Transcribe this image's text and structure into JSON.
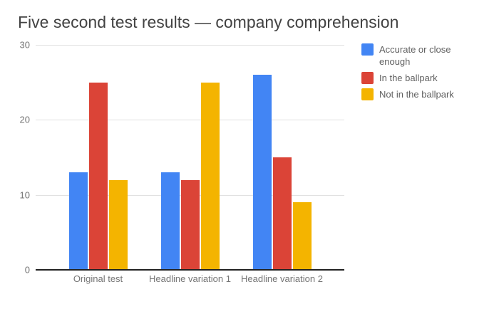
{
  "chart_data": {
    "type": "bar",
    "title": "Five second test results — company comprehension",
    "categories": [
      "Original test",
      "Headline variation 1",
      "Headline variation 2"
    ],
    "series": [
      {
        "name": "Accurate or close enough",
        "color": "#4285F4",
        "values": [
          13,
          13,
          26
        ]
      },
      {
        "name": "In the ballpark",
        "color": "#DB4437",
        "values": [
          25,
          12,
          15
        ]
      },
      {
        "name": "Not in the ballpark",
        "color": "#F4B400",
        "values": [
          12,
          25,
          9
        ]
      }
    ],
    "xlabel": "",
    "ylabel": "",
    "ylim": [
      0,
      30
    ],
    "yticks": [
      0,
      10,
      20,
      30
    ],
    "grid": true,
    "legend_position": "right",
    "colors": {
      "background": "#ffffff",
      "title_text": "#424242",
      "axis_text": "#757575",
      "legend_text": "#616161",
      "gridline": "#e0e0e0",
      "axis_line": "#212121"
    }
  }
}
